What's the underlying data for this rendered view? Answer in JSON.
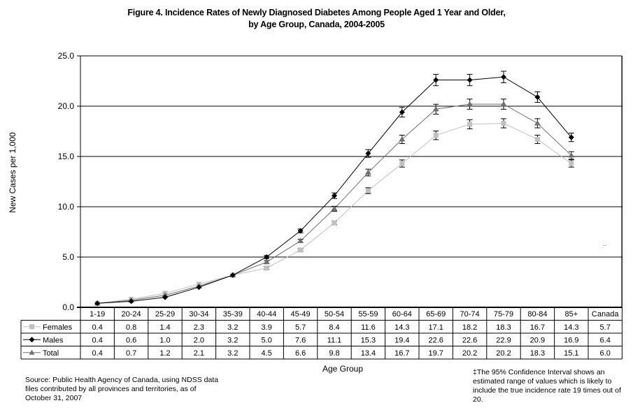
{
  "header": {
    "title_line1": "Figure 4. Incidence Rates of Newly Diagnosed Diabetes Among People Aged 1 Year and Older,",
    "title_line2": "by Age Group, Canada, 2004-2005"
  },
  "axes": {
    "ylabel": "New Cases per 1,000",
    "xlabel": "Age Group",
    "yticks": [
      "25.0",
      "20.0",
      "15.0",
      "10.0",
      "5.0",
      "0.0"
    ]
  },
  "table": {
    "columns": [
      "1-19",
      "20-24",
      "25-29",
      "30-34",
      "35-39",
      "40-44",
      "45-49",
      "50-54",
      "55-59",
      "60-64",
      "65-69",
      "70-74",
      "75-79",
      "80-84",
      "85+",
      "Canada"
    ],
    "rows": [
      {
        "label": "Females",
        "values": [
          "0.4",
          "0.8",
          "1.4",
          "2.3",
          "3.2",
          "3.9",
          "5.7",
          "8.4",
          "11.6",
          "14.3",
          "17.1",
          "18.2",
          "18.3",
          "16.7",
          "14.3",
          "5.7"
        ]
      },
      {
        "label": "Males",
        "values": [
          "0.4",
          "0.6",
          "1.0",
          "2.0",
          "3.2",
          "5.0",
          "7.6",
          "11.1",
          "15.3",
          "19.4",
          "22.6",
          "22.6",
          "22.9",
          "20.9",
          "16.9",
          "6.4"
        ]
      },
      {
        "label": "Total",
        "values": [
          "0.4",
          "0.7",
          "1.2",
          "2.1",
          "3.2",
          "4.5",
          "6.6",
          "9.8",
          "13.4",
          "16.7",
          "19.7",
          "20.2",
          "20.2",
          "18.3",
          "15.1",
          "6.0"
        ]
      }
    ]
  },
  "footer": {
    "source": "Source: Public Health Agency of Canada, using NDSS data files contributed by all provinces and territories, as of October 31, 2007",
    "note": "‡The 95% Confidence Interval shows an estimated range of values which is likely to include the true incidence rate 19 times out of 20."
  },
  "colors": {
    "females": "#c0c0c0",
    "males": "#000000",
    "total": "#707070",
    "gridline": "#000000"
  },
  "chart_data": {
    "type": "line",
    "title": "Figure 4. Incidence Rates of Newly Diagnosed Diabetes Among People Aged 1 Year and Older, by Age Group, Canada, 2004-2005",
    "xlabel": "Age Group",
    "ylabel": "New Cases per 1,000",
    "ylim": [
      0,
      25
    ],
    "yticks": [
      0,
      5,
      10,
      15,
      20,
      25
    ],
    "grid": true,
    "legend_position": "data-table",
    "categories": [
      "1-19",
      "20-24",
      "25-29",
      "30-34",
      "35-39",
      "40-44",
      "45-49",
      "50-54",
      "55-59",
      "60-64",
      "65-69",
      "70-74",
      "75-79",
      "80-84",
      "85+"
    ],
    "series": [
      {
        "name": "Females",
        "marker": "square",
        "color": "#c0c0c0",
        "values": [
          0.4,
          0.8,
          1.4,
          2.3,
          3.2,
          3.9,
          5.7,
          8.4,
          11.6,
          14.3,
          17.1,
          18.2,
          18.3,
          16.7,
          14.3
        ],
        "canada": 5.7
      },
      {
        "name": "Males",
        "marker": "diamond",
        "color": "#000000",
        "values": [
          0.4,
          0.6,
          1.0,
          2.0,
          3.2,
          5.0,
          7.6,
          11.1,
          15.3,
          19.4,
          22.6,
          22.6,
          22.9,
          20.9,
          16.9
        ],
        "canada": 6.4
      },
      {
        "name": "Total",
        "marker": "triangle",
        "color": "#707070",
        "values": [
          0.4,
          0.7,
          1.2,
          2.1,
          3.2,
          4.5,
          6.6,
          9.8,
          13.4,
          16.7,
          19.7,
          20.2,
          20.2,
          18.3,
          15.1
        ],
        "canada": 6.0
      }
    ],
    "error_bars": "95% confidence interval",
    "annotations": [
      "‡The 95% Confidence Interval shows an estimated range of values which is likely to include the true incidence rate 19 times out of 20."
    ]
  }
}
